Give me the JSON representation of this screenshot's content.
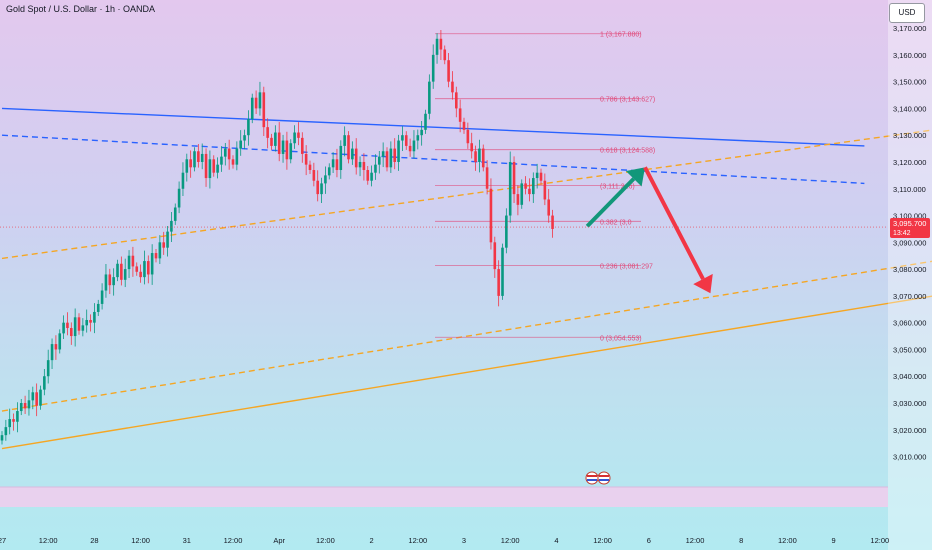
{
  "title": "Gold Spot / U.S. Dollar · 1h · OANDA",
  "currency": "USD",
  "colors": {
    "up": "#089981",
    "down": "#f23645",
    "fib": "#e04a7a",
    "blue": "#2962ff",
    "orange": "#f5a623",
    "price_tag": "#f23645",
    "arrow_up": "#12977a",
    "arrow_down": "#f23645"
  },
  "chart_data": {
    "type": "candlestick",
    "symbol": "XAUUSD",
    "timeframe": "1h",
    "y_range": [
      3002,
      3176
    ],
    "y_ticks": [
      {
        "value": 3170,
        "label": "3,170.000"
      },
      {
        "value": 3160,
        "label": "3,160.000"
      },
      {
        "value": 3150,
        "label": "3,150.000"
      },
      {
        "value": 3140,
        "label": "3,140.000"
      },
      {
        "value": 3130,
        "label": "3,130.000"
      },
      {
        "value": 3120,
        "label": "3,120.000"
      },
      {
        "value": 3110,
        "label": "3,110.000"
      },
      {
        "value": 3100,
        "label": "3,100.000"
      },
      {
        "value": 3090,
        "label": "3,090.000"
      },
      {
        "value": 3080,
        "label": "3,080.000"
      },
      {
        "value": 3070,
        "label": "3,070.000"
      },
      {
        "value": 3060,
        "label": "3,060.000"
      },
      {
        "value": 3050,
        "label": "3,050.000"
      },
      {
        "value": 3040,
        "label": "3,040.000"
      },
      {
        "value": 3030,
        "label": "3,030.000"
      },
      {
        "value": 3020,
        "label": "3,020.000"
      },
      {
        "value": 3010,
        "label": "3,010.000"
      }
    ],
    "x_ticks": [
      {
        "label": "27",
        "bar": 0
      },
      {
        "label": "12:00",
        "bar": 12
      },
      {
        "label": "28",
        "bar": 24
      },
      {
        "label": "12:00",
        "bar": 36
      },
      {
        "label": "31",
        "bar": 48
      },
      {
        "label": "12:00",
        "bar": 60
      },
      {
        "label": "Apr",
        "bar": 72
      },
      {
        "label": "12:00",
        "bar": 84
      },
      {
        "label": "2",
        "bar": 96
      },
      {
        "label": "12:00",
        "bar": 108
      },
      {
        "label": "3",
        "bar": 120
      },
      {
        "label": "12:00",
        "bar": 132
      },
      {
        "label": "4",
        "bar": 144
      },
      {
        "label": "12:00",
        "bar": 156
      },
      {
        "label": "6",
        "bar": 168
      },
      {
        "label": "12:00",
        "bar": 180
      },
      {
        "label": "8",
        "bar": 192
      },
      {
        "label": "12:00",
        "bar": 204
      },
      {
        "label": "9",
        "bar": 216
      },
      {
        "label": "12:00",
        "bar": 228
      }
    ],
    "closes": [
      3018,
      3021,
      3024,
      3023,
      3027,
      3030,
      3028,
      3031,
      3034,
      3029,
      3035,
      3040,
      3046,
      3052,
      3050,
      3056,
      3060,
      3058,
      3055,
      3062,
      3057,
      3059,
      3061,
      3060,
      3064,
      3067,
      3072,
      3078,
      3074,
      3077,
      3082,
      3076,
      3080,
      3085,
      3081,
      3079,
      3077,
      3083,
      3078,
      3086,
      3084,
      3090,
      3088,
      3094,
      3098,
      3103,
      3110,
      3116,
      3121,
      3118,
      3124,
      3120,
      3123,
      3114,
      3121,
      3116,
      3119,
      3122,
      3125,
      3121,
      3119,
      3125,
      3128,
      3130,
      3136,
      3144,
      3140,
      3146,
      3133,
      3129,
      3126,
      3131,
      3123,
      3128,
      3121,
      3127,
      3131,
      3129,
      3123,
      3119,
      3117,
      3113,
      3108,
      3112,
      3115,
      3118,
      3121,
      3117,
      3126,
      3130,
      3121,
      3125,
      3118,
      3120,
      3117,
      3113,
      3116,
      3119,
      3122,
      3124,
      3118,
      3125,
      3120,
      3128,
      3130,
      3126,
      3124,
      3128,
      3130,
      3132,
      3138,
      3150,
      3160,
      3166,
      3162,
      3158,
      3150,
      3146,
      3140,
      3135,
      3132,
      3127,
      3124,
      3120,
      3125,
      3118,
      3110,
      3090,
      3080,
      3070,
      3088,
      3100,
      3120,
      3108,
      3104,
      3112,
      3110,
      3108,
      3114,
      3116,
      3113,
      3106,
      3100,
      3095
    ],
    "current_price": {
      "value": 3095.7,
      "label": "3,095.700",
      "countdown": "13:42"
    },
    "fibonacci": [
      {
        "ratio": "1",
        "price": 3167.88,
        "label": "1 (3,167.880)"
      },
      {
        "ratio": "0.786",
        "price": 3143.627,
        "label": "0.786 (3,143.627)"
      },
      {
        "ratio": "0.618",
        "price": 3124.588,
        "label": "0.618 (3,124.588)"
      },
      {
        "ratio": "0.5",
        "price": 3111.216,
        "label": "(3,111.216)"
      },
      {
        "ratio": "0.382",
        "price": 3097.845,
        "label": "0.382 (3,0"
      },
      {
        "ratio": "0.236",
        "price": 3081.297,
        "label": "0.236 (3,081.297"
      },
      {
        "ratio": "0",
        "price": 3054.553,
        "label": "0 (3,054.553)"
      }
    ],
    "trendlines": [
      {
        "name": "blue-resistance",
        "style": "solid",
        "from": {
          "bar": 0,
          "price": 3140
        },
        "to": {
          "bar": 224,
          "price": 3126
        }
      },
      {
        "name": "blue-mid",
        "style": "dashed",
        "from": {
          "bar": 0,
          "price": 3130
        },
        "to": {
          "bar": 224,
          "price": 3112
        }
      },
      {
        "name": "orange-upper",
        "style": "dashed",
        "from": {
          "bar": 0,
          "price": 3084
        },
        "to": {
          "bar": 242,
          "price": 3132
        }
      },
      {
        "name": "orange-mid",
        "style": "dashed",
        "from": {
          "bar": 0,
          "price": 3027
        },
        "to": {
          "bar": 242,
          "price": 3083
        }
      },
      {
        "name": "orange-support",
        "style": "solid",
        "from": {
          "bar": 0,
          "price": 3013
        },
        "to": {
          "bar": 242,
          "price": 3070
        }
      }
    ],
    "projection": [
      {
        "direction": "up",
        "from": {
          "bar": 152,
          "price": 3096
        },
        "to": {
          "bar": 167,
          "price": 3118
        }
      },
      {
        "direction": "down",
        "from": {
          "bar": 167,
          "price": 3118
        },
        "to": {
          "bar": 184,
          "price": 3071
        }
      }
    ]
  }
}
